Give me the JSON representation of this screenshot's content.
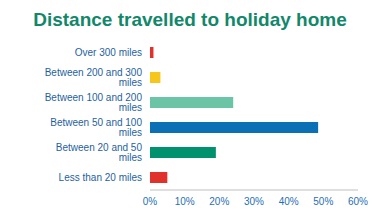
{
  "chart_data": {
    "type": "bar",
    "title": "Distance travelled to holiday home",
    "orientation": "horizontal",
    "categories": [
      "Over 300 miles",
      "Between 200 and 300 miles",
      "Between 100 and 200 miles",
      "Between 50 and 100 miles",
      "Between 20 and 50 miles",
      "Less than 20 miles"
    ],
    "values": [
      1,
      3,
      24,
      48.5,
      19,
      5
    ],
    "colors": [
      "#e0312b",
      "#f6c61a",
      "#6cc4a6",
      "#0a6fb5",
      "#00926e",
      "#e0312b"
    ],
    "xlim": [
      0,
      60
    ],
    "xticks": [
      {
        "value": 0,
        "label": "0%"
      },
      {
        "value": 10,
        "label": "10%"
      },
      {
        "value": 20,
        "label": "20%"
      },
      {
        "value": 30,
        "label": "30%"
      },
      {
        "value": 40,
        "label": "40%"
      },
      {
        "value": 50,
        "label": "50%"
      },
      {
        "value": 60,
        "label": "60%"
      }
    ],
    "grid": false
  }
}
